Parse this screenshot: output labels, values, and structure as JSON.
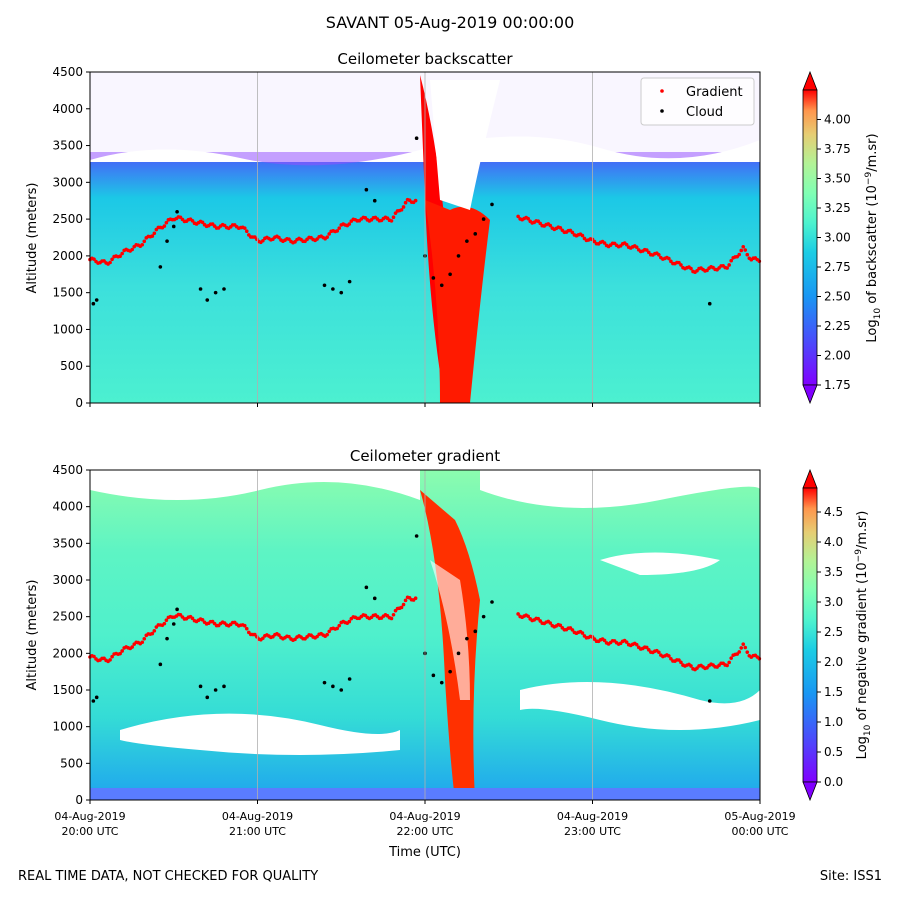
{
  "figure": {
    "suptitle": "SAVANT 05-Aug-2019 00:00:00",
    "footer_left": "REAL TIME DATA, NOT CHECKED FOR QUALITY",
    "footer_right": "Site: ISS1",
    "xlabel": "Time (UTC)",
    "colormap": "rainbow",
    "marker_colors": {
      "gradient": "#ff0000",
      "cloud": "#000000"
    }
  },
  "chart_data": [
    {
      "type": "heatmap",
      "title": "Ceilometer backscatter",
      "ylabel": "Altitude (meters)",
      "ylim": [
        0,
        4500
      ],
      "yticks": [
        0,
        500,
        1000,
        1500,
        2000,
        2500,
        3000,
        3500,
        4000,
        4500
      ],
      "colorbar": {
        "label_prefix": "Log",
        "label_sub": "10",
        "label_mid": " of backscatter (10",
        "label_sup": "−9",
        "label_suffix": "/m.sr)",
        "range": [
          1.75,
          4.25
        ],
        "ticks": [
          "1.75",
          "2.00",
          "2.25",
          "2.50",
          "2.75",
          "3.00",
          "3.25",
          "3.50",
          "3.75",
          "4.00"
        ],
        "extend": "both"
      },
      "legend": {
        "placement": "top-right",
        "entries": [
          "Gradient",
          "Cloud"
        ]
      },
      "gradient_height": {
        "t": [
          0,
          0.1,
          0.2,
          0.3,
          0.4,
          0.5,
          0.55,
          0.65,
          0.75,
          0.9,
          1.0,
          1.1,
          1.2,
          1.4,
          1.5,
          1.6,
          1.7,
          1.8,
          1.9,
          2.0,
          2.1,
          2.2,
          2.3,
          2.4,
          2.5,
          2.6,
          2.75,
          2.9,
          3.0,
          3.1,
          3.2,
          3.4,
          3.6,
          3.8,
          3.9,
          3.95,
          4.0
        ],
        "alt": [
          1950,
          1900,
          2050,
          2150,
          2350,
          2520,
          2500,
          2450,
          2400,
          2400,
          2200,
          2250,
          2200,
          2250,
          2400,
          2500,
          2500,
          2500,
          2750,
          2750,
          2720,
          2700,
          2700,
          2630,
          2570,
          2500,
          2400,
          2300,
          2200,
          2150,
          2150,
          2000,
          1800,
          1850,
          2100,
          1950,
          1950
        ]
      },
      "cloud_base": {
        "t": [
          0.02,
          0.04,
          0.42,
          0.46,
          0.5,
          0.52,
          0.66,
          0.7,
          0.75,
          0.8,
          1.4,
          1.45,
          1.5,
          1.55,
          1.65,
          1.7,
          1.95,
          2.0,
          2.05,
          2.1,
          2.15,
          2.2,
          2.25,
          2.3,
          2.35,
          2.4,
          3.7
        ],
        "alt": [
          1350,
          1400,
          1850,
          2200,
          2400,
          2600,
          1550,
          1400,
          1500,
          1550,
          1600,
          1550,
          1500,
          1650,
          2900,
          2750,
          3600,
          2000,
          1700,
          1600,
          1750,
          2000,
          2200,
          2300,
          2500,
          2700,
          1350
        ]
      }
    },
    {
      "type": "heatmap",
      "title": "Ceilometer gradient",
      "ylabel": "Altitude (meters)",
      "ylim": [
        0,
        4500
      ],
      "yticks": [
        0,
        500,
        1000,
        1500,
        2000,
        2500,
        3000,
        3500,
        4000,
        4500
      ],
      "xtick_dates": [
        "04-Aug-2019",
        "04-Aug-2019",
        "04-Aug-2019",
        "04-Aug-2019",
        "05-Aug-2019"
      ],
      "xtick_times": [
        "20:00 UTC",
        "21:00 UTC",
        "22:00 UTC",
        "23:00 UTC",
        "00:00 UTC"
      ],
      "colorbar": {
        "label_prefix": "Log",
        "label_sub": "10",
        "label_mid": " of negative gradient (10",
        "label_sup": "−9",
        "label_suffix": "/m.sr)",
        "range": [
          0.0,
          4.9
        ],
        "ticks": [
          "0.0",
          "0.5",
          "1.0",
          "1.5",
          "2.0",
          "2.5",
          "3.0",
          "3.5",
          "4.0",
          "4.5"
        ],
        "extend": "both"
      }
    }
  ]
}
